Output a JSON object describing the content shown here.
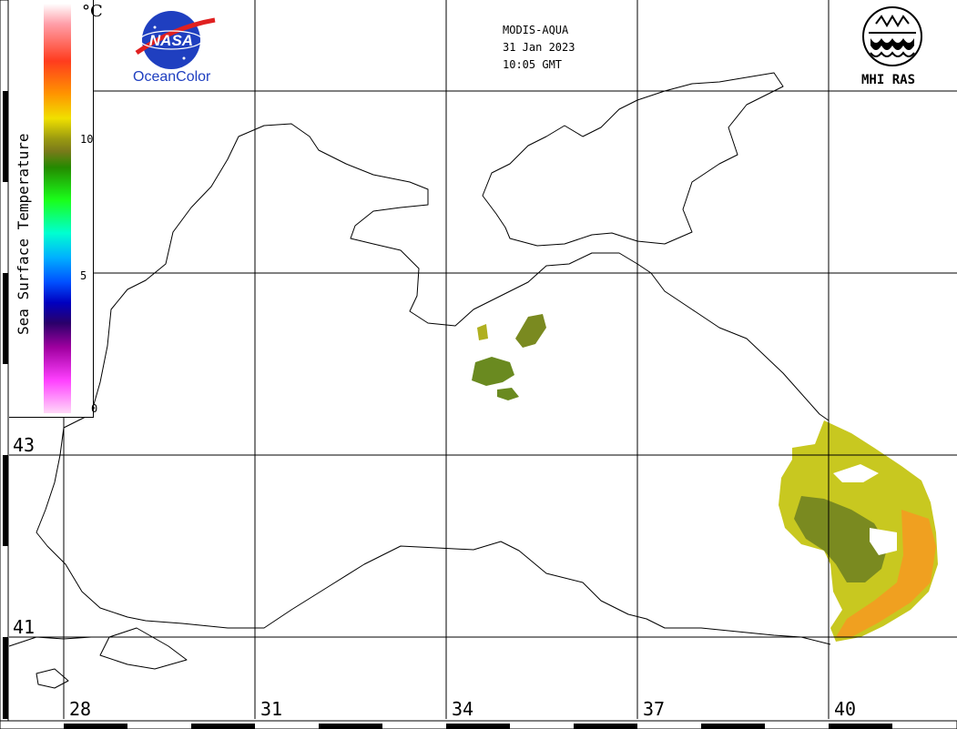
{
  "header": {
    "sensor": "MODIS-AQUA",
    "date": "31 Jan 2023",
    "time": "10:05 GMT"
  },
  "logos": {
    "nasa_label": "NASA",
    "oceancolor_label": "OceanColor",
    "mhi_label": "MHI RAS"
  },
  "legend": {
    "title": "Sea Surface Temperature",
    "unit": "°C",
    "ticks": [
      "10",
      "5",
      "0"
    ]
  },
  "axes": {
    "latitude_labels": [
      "43",
      "41"
    ],
    "longitude_labels": [
      "28",
      "31",
      "34",
      "37",
      "40"
    ]
  },
  "colors": {
    "coast": "#000000",
    "nasa_blue": "#1f3fc0",
    "sst_warm": "#f0a020",
    "sst_mid": "#c8c820",
    "sst_cool": "#6a8a20"
  }
}
